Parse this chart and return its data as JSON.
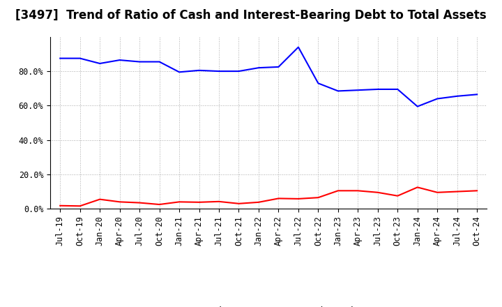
{
  "title": "[3497]  Trend of Ratio of Cash and Interest-Bearing Debt to Total Assets",
  "x_labels": [
    "Jul-19",
    "Oct-19",
    "Jan-20",
    "Apr-20",
    "Jul-20",
    "Oct-20",
    "Jan-21",
    "Apr-21",
    "Jul-21",
    "Oct-21",
    "Jan-22",
    "Apr-22",
    "Jul-22",
    "Oct-22",
    "Jan-23",
    "Apr-23",
    "Jul-23",
    "Oct-23",
    "Jan-24",
    "Apr-24",
    "Jul-24",
    "Oct-24"
  ],
  "cash": [
    0.018,
    0.016,
    0.055,
    0.04,
    0.035,
    0.025,
    0.04,
    0.038,
    0.042,
    0.03,
    0.038,
    0.06,
    0.058,
    0.065,
    0.105,
    0.105,
    0.095,
    0.075,
    0.125,
    0.095,
    0.1,
    0.105
  ],
  "interest_bearing_debt": [
    0.875,
    0.875,
    0.845,
    0.865,
    0.855,
    0.855,
    0.795,
    0.805,
    0.8,
    0.8,
    0.82,
    0.825,
    0.94,
    0.73,
    0.685,
    0.69,
    0.695,
    0.695,
    0.595,
    0.64,
    0.655,
    0.665
  ],
  "cash_color": "#ff0000",
  "debt_color": "#0000ff",
  "background_color": "#ffffff",
  "grid_color": "#aaaaaa",
  "ylim": [
    0.0,
    1.0
  ],
  "yticks": [
    0.0,
    0.2,
    0.4,
    0.6,
    0.8
  ],
  "legend_cash": "Cash",
  "legend_debt": "Interest-Bearing Debt",
  "title_fontsize": 12,
  "axis_fontsize": 8.5,
  "legend_fontsize": 9.5
}
